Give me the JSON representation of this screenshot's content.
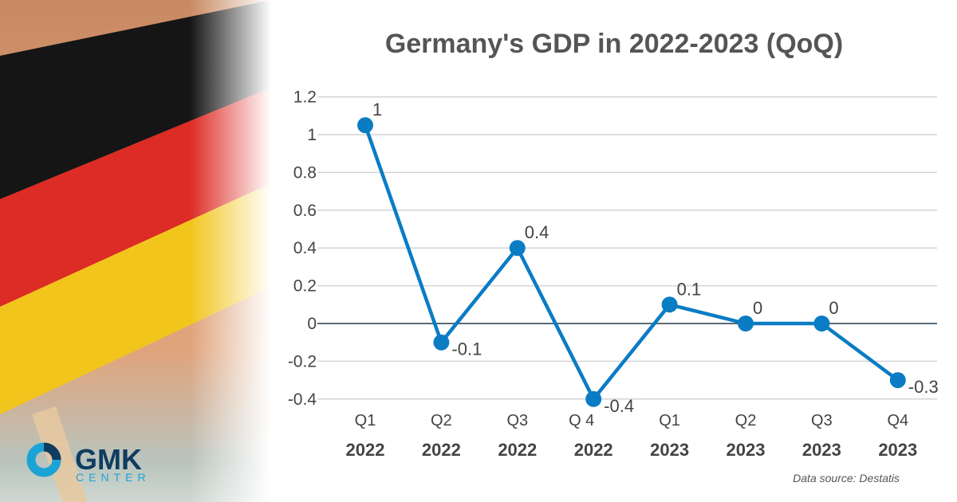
{
  "chart_data": {
    "type": "line",
    "title": "Germany's GDP in 2022-2023 (QoQ)",
    "categories": [
      [
        "Q1",
        "2022"
      ],
      [
        "Q2",
        "2022"
      ],
      [
        "Q3",
        "2022"
      ],
      [
        "Q 4",
        "2022"
      ],
      [
        "Q1",
        "2023"
      ],
      [
        "Q2",
        "2023"
      ],
      [
        "Q3",
        "2023"
      ],
      [
        "Q4",
        "2023"
      ]
    ],
    "values": [
      1.05,
      -0.1,
      0.4,
      -0.4,
      0.1,
      0,
      0,
      -0.3
    ],
    "data_labels": [
      "1",
      "-0.1",
      "0.4",
      "-0.4",
      "0.1",
      "0",
      "0",
      "-0.3"
    ],
    "yticks": [
      "1.2",
      "1",
      "0.8",
      "0.6",
      "0.4",
      "0.2",
      "0",
      "-0.2",
      "-0.4"
    ],
    "ylim": [
      -0.4,
      1.2
    ],
    "grid": true,
    "line_color": "#0a7cc4",
    "zero_line_color": "#1d3a4d"
  },
  "source": "Data source: Destatis",
  "logo": {
    "name": "GMK",
    "sub": "CENTER",
    "color_dark": "#0f3c5f",
    "color_light": "#1ba3d6"
  }
}
